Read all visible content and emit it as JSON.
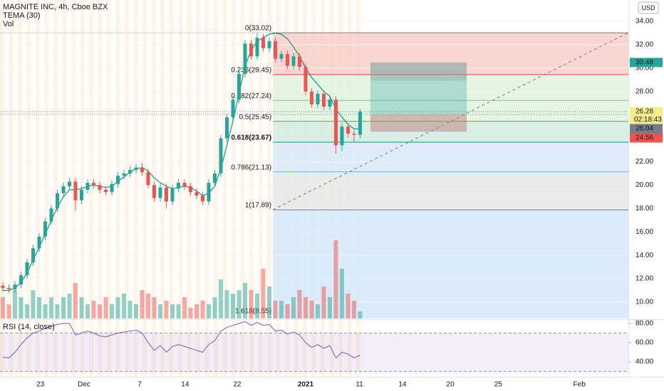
{
  "header": {
    "symbol": "MAGNITE INC, 4h, Cboe BZX",
    "indicator": "TEMA (30)",
    "volume_label": "Vol",
    "currency": "USD"
  },
  "chart_data": [
    {
      "type": "candlestick",
      "xlim": [
        -0.47,
        103.3
      ],
      "xticks": [
        {
          "value": 6.2,
          "label": "23"
        },
        {
          "value": 13.4,
          "label": "Dec"
        },
        {
          "value": 22.6,
          "label": "7"
        },
        {
          "value": 30.1,
          "label": "14"
        },
        {
          "value": 38.7,
          "label": "22"
        },
        {
          "value": 50,
          "label": "2021",
          "bold": true
        },
        {
          "value": 58.9,
          "label": "11"
        },
        {
          "value": 66,
          "label": "14"
        },
        {
          "value": 73.9,
          "label": "20"
        },
        {
          "value": 81.8,
          "label": "25"
        },
        {
          "value": 95.2,
          "label": "Feb"
        }
      ],
      "ylim": [
        8.6,
        35.82
      ],
      "yticks": [
        {
          "value": 10,
          "label": "10.00"
        },
        {
          "value": 12,
          "label": "12.00"
        },
        {
          "value": 14,
          "label": "14.00"
        },
        {
          "value": 16,
          "label": "16.00"
        },
        {
          "value": 18,
          "label": "18.00"
        },
        {
          "value": 20,
          "label": "20.00"
        },
        {
          "value": 22,
          "label": "22.00"
        },
        {
          "value": 28,
          "label": "28.00"
        },
        {
          "value": 30,
          "label": "30.00"
        },
        {
          "value": 32,
          "label": "32.00"
        },
        {
          "value": 34,
          "label": "34.00"
        }
      ],
      "up_color": "#26a69a",
      "down_color": "#ef5350",
      "open": [
        11.4,
        11.2,
        11.1,
        11.5,
        12.3,
        13.4,
        14.6,
        15.6,
        16.9,
        18.0,
        19.3,
        19.9,
        20.3,
        18.7,
        19.6,
        20.2,
        20.0,
        19.6,
        19.4,
        20.1,
        20.8,
        21.0,
        21.3,
        21.5,
        21.1,
        20.0,
        18.9,
        19.8,
        18.6,
        19.7,
        20.2,
        19.9,
        19.4,
        19.1,
        18.6,
        20.2,
        21.0,
        24.0,
        25.8,
        27.3,
        29.5,
        32.1,
        31.0,
        32.6,
        31.7,
        32.3,
        30.8,
        31.2,
        30.2,
        31.0,
        30.1,
        28.0,
        26.9,
        27.8,
        26.7,
        27.3,
        23.4,
        25.0,
        24.4,
        24.3
      ],
      "high": [
        11.7,
        11.5,
        11.8,
        12.6,
        13.7,
        14.9,
        15.9,
        17.2,
        18.3,
        19.6,
        20.2,
        20.6,
        20.6,
        19.9,
        20.5,
        20.5,
        20.3,
        19.9,
        20.4,
        21.1,
        21.3,
        21.6,
        21.8,
        21.9,
        21.4,
        20.3,
        20.1,
        20.1,
        20.0,
        20.5,
        20.5,
        20.2,
        19.7,
        19.4,
        20.5,
        21.3,
        24.3,
        26.1,
        27.6,
        29.8,
        32.4,
        32.4,
        33.02,
        32.9,
        32.6,
        32.6,
        31.5,
        31.5,
        31.3,
        31.3,
        30.4,
        28.3,
        28.1,
        28.1,
        27.6,
        27.6,
        25.3,
        25.3,
        24.7,
        26.5
      ],
      "low": [
        10.9,
        10.8,
        10.8,
        11.2,
        12.0,
        13.1,
        14.3,
        15.3,
        16.6,
        17.7,
        19.0,
        19.6,
        17.8,
        18.4,
        19.3,
        19.7,
        19.3,
        19.1,
        19.1,
        19.8,
        20.5,
        20.7,
        21.0,
        20.8,
        19.7,
        18.6,
        18.6,
        18.0,
        18.3,
        19.4,
        19.6,
        19.1,
        18.8,
        18.3,
        18.3,
        19.9,
        20.7,
        23.7,
        25.5,
        27.0,
        29.2,
        30.7,
        30.7,
        31.4,
        31.4,
        30.5,
        30.5,
        29.9,
        29.9,
        29.8,
        27.7,
        26.6,
        26.6,
        26.4,
        26.4,
        22.7,
        22.9,
        24.1,
        23.7,
        24.0
      ],
      "close": [
        11.2,
        11.1,
        11.5,
        12.3,
        13.4,
        14.6,
        15.6,
        16.9,
        18.0,
        19.3,
        19.9,
        20.3,
        18.7,
        19.6,
        20.2,
        20.0,
        19.6,
        19.4,
        20.1,
        20.8,
        21.0,
        21.3,
        21.5,
        21.1,
        20.0,
        18.9,
        19.8,
        18.6,
        19.7,
        20.2,
        19.9,
        19.4,
        19.1,
        18.6,
        20.2,
        21.0,
        24.0,
        25.8,
        27.3,
        29.5,
        32.1,
        31.0,
        32.6,
        31.7,
        32.3,
        30.8,
        31.2,
        30.2,
        31.0,
        30.1,
        28.0,
        26.9,
        27.8,
        26.7,
        27.3,
        23.4,
        25.0,
        24.4,
        24.3,
        26.28
      ],
      "volume": [
        3,
        2,
        4,
        3,
        2,
        4,
        3,
        2,
        3,
        2,
        3,
        3.5,
        5,
        3,
        2,
        2.5,
        2,
        3,
        2,
        3,
        3.5,
        2.5,
        2,
        4,
        3.5,
        3,
        2,
        2.5,
        2,
        2,
        3,
        1.5,
        2,
        2.5,
        2,
        3,
        5.5,
        4,
        3.5,
        4,
        5,
        4,
        3.5,
        7,
        4.5,
        2.5,
        2.5,
        2,
        3,
        4,
        3,
        2.5,
        2,
        4.5,
        3,
        11,
        7,
        3.5,
        2.5,
        1
      ],
      "tema": {
        "name": "TEMA (30)",
        "color": "#089981",
        "values": [
          11.0,
          11.0,
          11.2,
          11.7,
          12.5,
          13.6,
          14.7,
          15.8,
          17.0,
          18.1,
          19.0,
          19.6,
          19.6,
          19.7,
          19.9,
          20.0,
          19.9,
          19.8,
          19.9,
          20.3,
          20.7,
          21.1,
          21.4,
          21.5,
          21.2,
          20.6,
          20.2,
          19.9,
          19.7,
          19.8,
          19.9,
          19.8,
          19.5,
          19.1,
          19.3,
          19.9,
          21.4,
          23.4,
          25.5,
          27.8,
          30.2,
          31.5,
          32.3,
          32.6,
          32.9,
          33.0,
          32.9,
          32.5,
          31.8,
          31.0,
          30.0,
          29.2,
          28.6,
          28.0,
          27.6,
          26.5,
          25.8,
          25.2,
          24.8,
          24.8
        ]
      },
      "fib": {
        "from_bar": 44.6,
        "to_bar": 103.3,
        "levels": [
          {
            "label": "0(33.02)",
            "value": 33.02,
            "color": "#787b86",
            "fill": "#f9cfcb"
          },
          {
            "label": "0.236(29.45)",
            "value": 29.45,
            "color": "#f23645",
            "fill": "#e2f2df"
          },
          {
            "label": "0.382(27.24)",
            "value": 27.24,
            "color": "#81c784",
            "fill": "#e2f2df"
          },
          {
            "label": "0.5(25.45)",
            "value": 25.45,
            "color": "#4caf50",
            "fill": "#d2ece2"
          },
          {
            "label": "0.618(23.67)",
            "value": 23.67,
            "color": "#089981",
            "fill": "#d8e9f8"
          },
          {
            "label": "0.786(21.13)",
            "value": 21.13,
            "color": "#64b5f6",
            "fill": "#e6e6e6"
          },
          {
            "label": "1(17.89)",
            "value": 17.89,
            "color": "#787b86",
            "fill": "#d5e7fa"
          },
          {
            "label": "1.618(8.55)",
            "value": 8.55,
            "color": "#2962ff"
          }
        ]
      },
      "position": {
        "from_bar": 60.7,
        "to_bar": 76.6,
        "target": 30.48,
        "entry": 26.04,
        "stop": 24.56
      },
      "last_price": 26.28,
      "countdown": "02:18:43"
    },
    {
      "type": "line",
      "title": "RSI (14, close)",
      "color": "#7e57c2",
      "ylim": [
        24.4,
        83.7
      ],
      "yticks": [
        {
          "value": 40,
          "label": "40.00"
        },
        {
          "value": 60,
          "label": "60.00"
        },
        {
          "value": 80,
          "label": "80.00"
        }
      ],
      "band": [
        30,
        70
      ],
      "values": [
        45,
        44,
        50,
        58,
        65,
        70,
        72,
        75,
        77,
        79,
        80,
        80,
        68,
        70,
        72,
        70,
        67,
        66,
        68,
        70,
        71,
        72,
        73,
        70,
        60,
        52,
        57,
        50,
        56,
        58,
        56,
        54,
        52,
        50,
        58,
        62,
        72,
        76,
        78,
        80,
        82,
        78,
        81,
        78,
        79,
        72,
        73,
        69,
        71,
        68,
        60,
        55,
        58,
        54,
        57,
        44,
        50,
        48,
        44,
        47
      ]
    }
  ]
}
